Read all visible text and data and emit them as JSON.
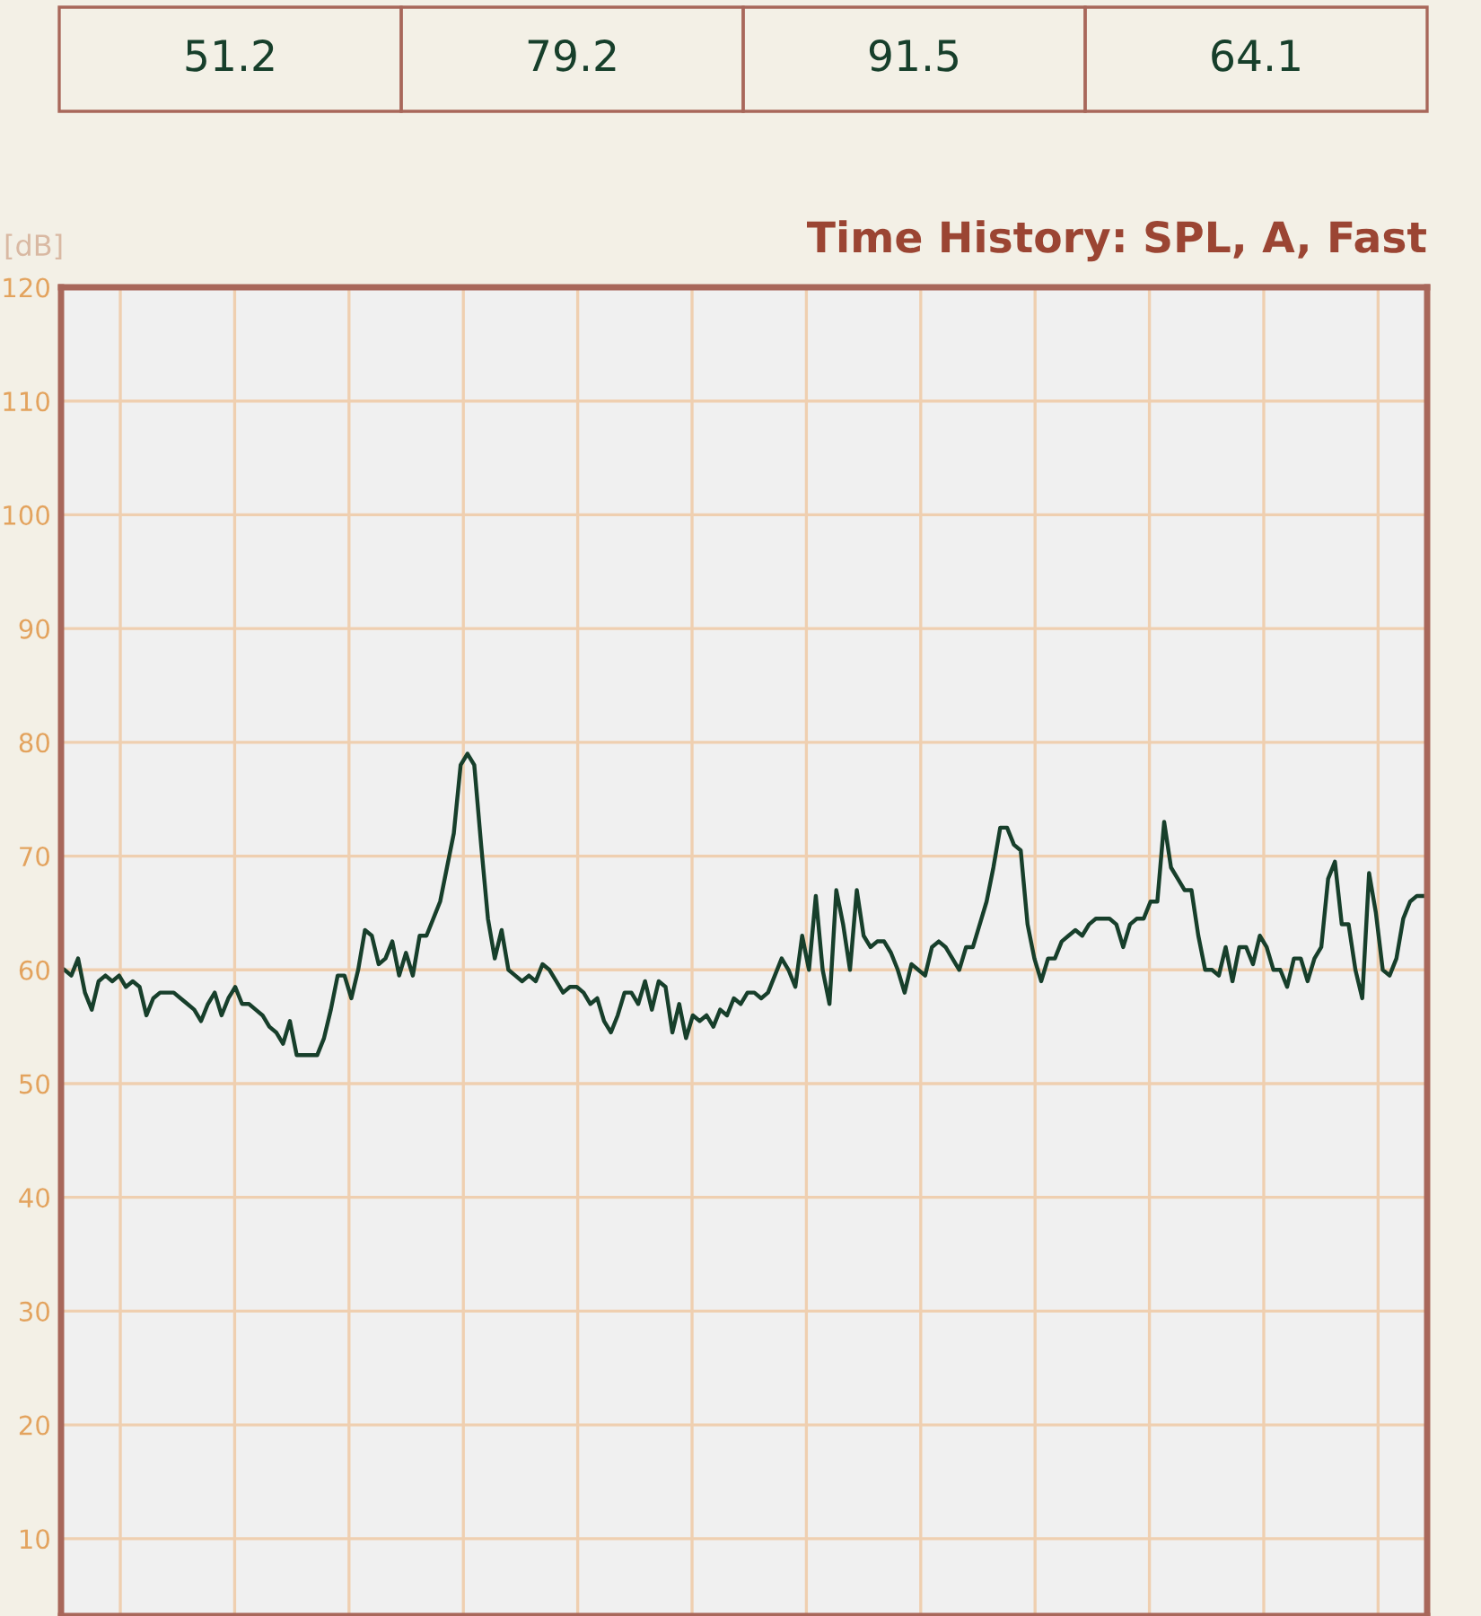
{
  "chart_data": {
    "type": "line",
    "title": "Time History: SPL, A, Fast",
    "ylabel": "[dB]",
    "annotations": [
      "51.2",
      "79.2",
      "91.5",
      "64.1"
    ],
    "categories": [
      null,
      null,
      null,
      null,
      null,
      null,
      null,
      null,
      null,
      null,
      null,
      null,
      null,
      null,
      null,
      null,
      null,
      null,
      null,
      null,
      null,
      null,
      null,
      null,
      null,
      null,
      null,
      null,
      null,
      null,
      null,
      null,
      null,
      null,
      null,
      null,
      null,
      null,
      null,
      null,
      null,
      null,
      null,
      null,
      null,
      null,
      null,
      null,
      null,
      null,
      null,
      null,
      null,
      null,
      null,
      null,
      null,
      null,
      null,
      null,
      null,
      null,
      null,
      null,
      null,
      null,
      null,
      null,
      null,
      null,
      null,
      null,
      null,
      null,
      null,
      null,
      null,
      null,
      null,
      null,
      null,
      null,
      null,
      null,
      null,
      null,
      null,
      null,
      null,
      null,
      null,
      null,
      null,
      null,
      null,
      null,
      null,
      null,
      null,
      null,
      null,
      null,
      null,
      null,
      null,
      null,
      null,
      null,
      null,
      null,
      null,
      null,
      null,
      null,
      null,
      null,
      null,
      null,
      null,
      null,
      null,
      null,
      null,
      null,
      null,
      null,
      null,
      null,
      null,
      null,
      null,
      null,
      null,
      null,
      null,
      null,
      null,
      null,
      null,
      null,
      null,
      null,
      null,
      null,
      null,
      null,
      null,
      null,
      null,
      null,
      null,
      null,
      null,
      null,
      null,
      null,
      null,
      null,
      null,
      null,
      null,
      null,
      null,
      null,
      null,
      null,
      null,
      null,
      null,
      null,
      null,
      null,
      null,
      null,
      null,
      null,
      null,
      null,
      null,
      null,
      null,
      null,
      null,
      null,
      null,
      null,
      null,
      null,
      null,
      null,
      null,
      null,
      null,
      null,
      null,
      null,
      null,
      null,
      null,
      null
    ],
    "series": [
      {
        "color": "#173f2b",
        "values": [
          60,
          59.5,
          61,
          58,
          56.5,
          59,
          59.5,
          59,
          59.5,
          58.5,
          59,
          58.5,
          56,
          57.5,
          58,
          58,
          58,
          57.5,
          57,
          56.5,
          55.5,
          57,
          58,
          56,
          57.5,
          58.5,
          57,
          57,
          56.5,
          56,
          55,
          54.5,
          53.5,
          55.5,
          52.5,
          52.5,
          52.5,
          52.5,
          54,
          56.5,
          59.5,
          59.5,
          57.5,
          60,
          63.5,
          63,
          60.5,
          61,
          62.5,
          59.5,
          61.5,
          59.5,
          63,
          63,
          64.5,
          66,
          69,
          72,
          78,
          79,
          78,
          71,
          64.5,
          61,
          63.5,
          60,
          59.5,
          59,
          59.5,
          59,
          60.5,
          60,
          59,
          58,
          58.5,
          58.5,
          58,
          57,
          57.5,
          55.5,
          54.5,
          56,
          58,
          58,
          57,
          59,
          56.5,
          59,
          58.5,
          54.5,
          57,
          54,
          56,
          55.5,
          56,
          55,
          56.5,
          56,
          57.5,
          57,
          58,
          58,
          57.5,
          58,
          59.5,
          61,
          60,
          58.5,
          63,
          60,
          66.5,
          60,
          57,
          67,
          64,
          60,
          67,
          63,
          62,
          62.5,
          62.5,
          61.5,
          60,
          58,
          60.5,
          60,
          59.5,
          62,
          62.5,
          62,
          61,
          60,
          62,
          62,
          64,
          66,
          69,
          72.5,
          72.5,
          71,
          70.5,
          64,
          61,
          59,
          61,
          61,
          62.5,
          63,
          63.5,
          63,
          64,
          64.5,
          64.5,
          64.5,
          64,
          62,
          64,
          64.5,
          64.5,
          66,
          66,
          73,
          69,
          68,
          67,
          67,
          63,
          60,
          60,
          59.5,
          62,
          59,
          62,
          62,
          60.5,
          63,
          62,
          60,
          60,
          58.5,
          61,
          61,
          59,
          61,
          62,
          68,
          69.5,
          64,
          64,
          60,
          57.5,
          68.5,
          65,
          60,
          59.5,
          61,
          64.5,
          66,
          66.5,
          66.5
        ]
      }
    ],
    "ylim": [
      3.2,
      120
    ],
    "yticks": [
      10,
      20,
      30,
      40,
      50,
      60,
      70,
      80,
      90,
      100,
      110,
      120
    ],
    "grid": true,
    "marker": "none",
    "line_style": "solid"
  }
}
